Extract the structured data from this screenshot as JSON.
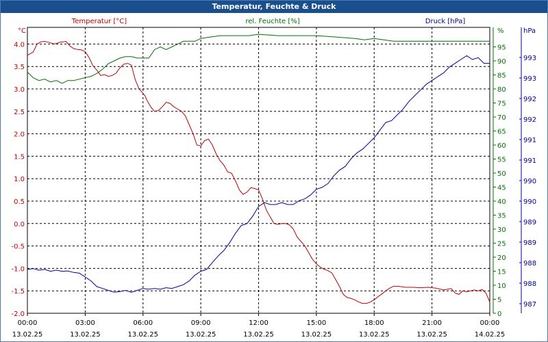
{
  "window": {
    "title": "Temperatur, Feuchte & Druck"
  },
  "colors": {
    "temperature": "#c00000",
    "humidity": "#007000",
    "pressure": "#000099",
    "grid": "#000000",
    "titlebar": "#1a4f8e"
  },
  "chart_data": {
    "type": "line",
    "title": "Temperatur, Feuchte & Druck",
    "x_labels": [
      {
        "time": "00:00",
        "date": "13.02.25"
      },
      {
        "time": "03:00",
        "date": "13.02.25"
      },
      {
        "time": "06:00",
        "date": "13.02.25"
      },
      {
        "time": "09:00",
        "date": "13.02.25"
      },
      {
        "time": "12:00",
        "date": "13.02.25"
      },
      {
        "time": "15:00",
        "date": "13.02.25"
      },
      {
        "time": "18:00",
        "date": "13.02.25"
      },
      {
        "time": "21:00",
        "date": "13.02.25"
      },
      {
        "time": "00:00",
        "date": "14.02.25"
      }
    ],
    "x_range_hours": [
      0,
      24
    ],
    "axes": {
      "temperature": {
        "unit": "°C",
        "title": "Temperatur [°C]",
        "ylim": [
          -2.0,
          4.25
        ],
        "ticks": [
          "4.0",
          "3.5",
          "3.0",
          "2.5",
          "2.0",
          "1.5",
          "1.0",
          "0.5",
          "0.0",
          "-0.5",
          "-1.0",
          "-1.5",
          "-2.0"
        ]
      },
      "humidity": {
        "unit": "%",
        "title": "rel. Feuchte [%]",
        "ylim": [
          0,
          100
        ],
        "ticks": [
          "95",
          "90",
          "85",
          "80",
          "75",
          "70",
          "65",
          "60",
          "55",
          "50",
          "45",
          "40",
          "35",
          "30",
          "25",
          "20",
          "15",
          "10",
          "5",
          "0"
        ]
      },
      "pressure": {
        "unit": "hPa",
        "title": "Druck [hPa]",
        "ylim": [
          986.45,
          993.8
        ],
        "ticks": [
          "993",
          "993",
          "992",
          "992",
          "991",
          "991",
          "990",
          "990",
          "989",
          "989",
          "988",
          "988",
          "987"
        ]
      }
    },
    "series": [
      {
        "name": "Temperatur [°C]",
        "axis": "temperature",
        "x": [
          0,
          0.3,
          0.5,
          0.7,
          0.9,
          1.1,
          1.4,
          1.7,
          2.0,
          2.2,
          2.4,
          2.6,
          2.8,
          3.0,
          3.2,
          3.4,
          3.6,
          3.8,
          4.0,
          4.2,
          4.4,
          4.6,
          4.8,
          5.0,
          5.2,
          5.4,
          5.6,
          5.8,
          6.0,
          6.1,
          6.2,
          6.4,
          6.6,
          6.8,
          7.0,
          7.2,
          7.4,
          7.6,
          7.8,
          8.0,
          8.2,
          8.4,
          8.6,
          8.8,
          9.0,
          9.2,
          9.4,
          9.6,
          9.8,
          10.0,
          10.2,
          10.4,
          10.6,
          10.8,
          11.0,
          11.2,
          11.4,
          11.6,
          11.8,
          12.0,
          12.2,
          12.4,
          12.6,
          12.8,
          13.0,
          13.2,
          13.4,
          13.6,
          13.8,
          14.0,
          14.2,
          14.4,
          14.6,
          14.8,
          15.0,
          15.2,
          15.4,
          15.6,
          15.8,
          16.0,
          16.2,
          16.4,
          16.6,
          16.8,
          17.0,
          17.2,
          17.4,
          17.6,
          17.8,
          18.0,
          18.2,
          18.4,
          18.6,
          18.8,
          19.0,
          19.3,
          19.6,
          20.0,
          20.4,
          20.8,
          21.2,
          21.6,
          22.0,
          22.2,
          22.4,
          22.6,
          22.8,
          23.0,
          23.2,
          23.4,
          23.6,
          23.8,
          24.0
        ],
        "values": [
          3.75,
          3.82,
          4.0,
          4.05,
          4.06,
          4.04,
          4.0,
          4.04,
          4.06,
          3.96,
          3.9,
          3.88,
          3.87,
          3.83,
          3.7,
          3.52,
          3.42,
          3.3,
          3.32,
          3.28,
          3.3,
          3.35,
          3.47,
          3.55,
          3.57,
          3.53,
          3.2,
          3.0,
          2.9,
          2.85,
          2.75,
          2.6,
          2.5,
          2.52,
          2.6,
          2.7,
          2.68,
          2.6,
          2.55,
          2.5,
          2.4,
          2.2,
          2.0,
          1.75,
          1.73,
          1.85,
          1.88,
          1.75,
          1.55,
          1.4,
          1.3,
          1.15,
          1.12,
          0.95,
          0.75,
          0.65,
          0.7,
          0.8,
          0.78,
          0.75,
          0.55,
          0.3,
          0.15,
          0.0,
          -0.02,
          0.0,
          0.0,
          -0.03,
          -0.12,
          -0.3,
          -0.4,
          -0.5,
          -0.65,
          -0.8,
          -0.9,
          -0.97,
          -1.02,
          -1.05,
          -1.1,
          -1.25,
          -1.4,
          -1.58,
          -1.65,
          -1.67,
          -1.7,
          -1.75,
          -1.78,
          -1.78,
          -1.75,
          -1.7,
          -1.63,
          -1.57,
          -1.5,
          -1.44,
          -1.4,
          -1.4,
          -1.42,
          -1.42,
          -1.43,
          -1.42,
          -1.44,
          -1.48,
          -1.45,
          -1.55,
          -1.58,
          -1.5,
          -1.52,
          -1.5,
          -1.48,
          -1.5,
          -1.47,
          -1.55,
          -1.75
        ]
      },
      {
        "name": "rel. Feuchte [%]",
        "axis": "humidity",
        "x": [
          0,
          0.3,
          0.6,
          0.9,
          1.2,
          1.5,
          1.8,
          2.1,
          2.4,
          2.7,
          3.0,
          3.3,
          3.6,
          3.9,
          4.2,
          4.5,
          4.8,
          5.1,
          5.4,
          5.7,
          6.0,
          6.3,
          6.6,
          6.9,
          7.2,
          7.5,
          7.8,
          8.1,
          8.4,
          8.7,
          9.0,
          9.5,
          10.0,
          10.5,
          11.0,
          11.5,
          12.0,
          13.0,
          14.0,
          15.0,
          16.0,
          17.0,
          17.5,
          18.0,
          19.0,
          20.0,
          21.0,
          22.0,
          23.0,
          24.0
        ],
        "values": [
          86,
          84,
          83,
          83.5,
          82.5,
          83,
          82,
          83,
          83,
          83.5,
          84,
          84.5,
          85.5,
          87,
          89,
          90,
          91,
          91.5,
          91.5,
          91,
          91,
          91,
          94,
          95,
          94,
          95,
          96,
          97,
          97,
          97,
          98,
          98.5,
          99,
          99,
          99,
          99,
          99.5,
          99,
          99,
          99,
          98.5,
          98,
          97.5,
          98,
          97,
          97,
          97,
          97,
          97,
          97
        ]
      },
      {
        "name": "Druck [hPa]",
        "axis": "pressure",
        "x": [
          0,
          0.3,
          0.6,
          0.9,
          1.2,
          1.5,
          1.8,
          2.1,
          2.4,
          2.7,
          3.0,
          3.3,
          3.6,
          3.9,
          4.2,
          4.5,
          4.8,
          5.1,
          5.4,
          5.7,
          6.0,
          6.3,
          6.6,
          6.9,
          7.2,
          7.5,
          7.8,
          8.1,
          8.4,
          8.7,
          9.0,
          9.3,
          9.6,
          9.9,
          10.2,
          10.5,
          10.8,
          11.1,
          11.4,
          11.7,
          12.0,
          12.3,
          12.6,
          12.9,
          13.2,
          13.5,
          13.8,
          14.1,
          14.4,
          14.7,
          15.0,
          15.3,
          15.6,
          15.9,
          16.2,
          16.5,
          16.8,
          17.1,
          17.4,
          17.7,
          18.0,
          18.3,
          18.6,
          18.9,
          19.2,
          19.5,
          19.8,
          20.1,
          20.4,
          20.7,
          21.0,
          21.3,
          21.6,
          21.9,
          22.2,
          22.5,
          22.8,
          23.1,
          23.4,
          23.7,
          24.0
        ],
        "values": [
          987.6,
          987.62,
          987.58,
          987.6,
          987.55,
          987.58,
          987.55,
          987.56,
          987.52,
          987.5,
          987.4,
          987.3,
          987.15,
          987.1,
          987.05,
          987.0,
          987.02,
          987.05,
          987.0,
          987.05,
          987.1,
          987.08,
          987.1,
          987.08,
          987.12,
          987.1,
          987.15,
          987.2,
          987.3,
          987.45,
          987.55,
          987.6,
          987.78,
          987.95,
          988.1,
          988.3,
          988.55,
          988.75,
          988.8,
          989.0,
          989.25,
          989.35,
          989.3,
          989.3,
          989.35,
          989.3,
          989.3,
          989.4,
          989.45,
          989.55,
          989.7,
          989.75,
          989.85,
          990.05,
          990.2,
          990.3,
          990.5,
          990.65,
          990.75,
          990.9,
          991.05,
          991.25,
          991.45,
          991.5,
          991.65,
          991.8,
          992.0,
          992.15,
          992.3,
          992.45,
          992.55,
          992.65,
          992.75,
          992.9,
          993.0,
          993.1,
          993.2,
          993.1,
          993.15,
          993.0,
          993.0
        ]
      }
    ]
  }
}
